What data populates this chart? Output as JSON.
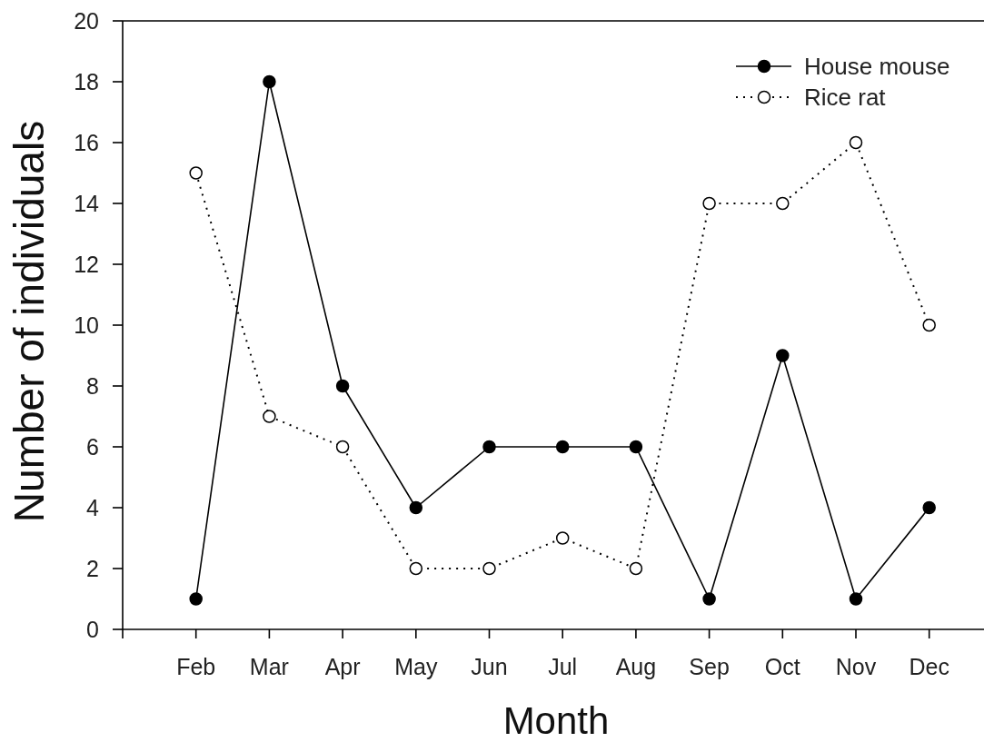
{
  "chart_data": {
    "type": "line",
    "xlabel": "Month",
    "ylabel": "Number of individuals",
    "categories": [
      null,
      "Feb",
      "Mar",
      "Apr",
      "May",
      "Jun",
      "Jul",
      "Aug",
      "Sep",
      "Oct",
      "Nov",
      "Dec"
    ],
    "ylim": [
      0,
      20
    ],
    "yticks": [
      0,
      2,
      4,
      6,
      8,
      10,
      12,
      14,
      16,
      18,
      20
    ],
    "marker": "circle",
    "legend": "top right",
    "series": [
      {
        "name": "House mouse",
        "color": "#000000",
        "line_style": "solid",
        "values": [
          null,
          1,
          18,
          8,
          4,
          6,
          6,
          6,
          1,
          9,
          1,
          4
        ]
      },
      {
        "name": "Rice rat",
        "color": "#000000",
        "line_style": "dotted",
        "values": [
          null,
          15,
          7,
          6,
          2,
          2,
          3,
          2,
          14,
          14,
          16,
          10
        ]
      }
    ]
  }
}
